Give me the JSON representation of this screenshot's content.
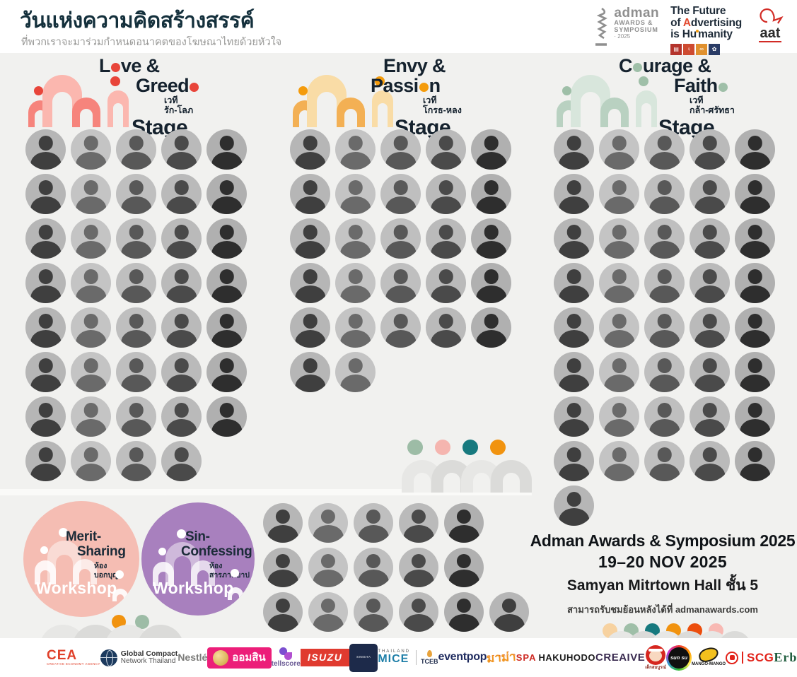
{
  "header": {
    "title": "วันแห่งความคิดสร้างสรรค์",
    "subtitle": "ที่พวกเราจะมาร่วมกำหนดอนาคตของโฆษณาไทยด้วยหัวใจ",
    "adman": {
      "name": "adman",
      "line2": "AWARDS &",
      "line3": "SYMPOSIUM",
      "year": "· 2025"
    },
    "tagline": {
      "l1": "The Future",
      "l2a": "of ",
      "l2b": "A",
      "l2c": "dvertising",
      "l3a": "is Hu",
      "l3b": "manity"
    },
    "sdg_tiles": [
      {
        "color": "#B4342C",
        "glyph": "▤"
      },
      {
        "color": "#CE4B31",
        "glyph": "♀"
      },
      {
        "color": "#E0912F",
        "glyph": "∞"
      },
      {
        "color": "#2A3C66",
        "glyph": "✿"
      }
    ],
    "aat": "aat"
  },
  "stages": [
    {
      "id": "love-greed",
      "line1": [
        {
          "t": "L"
        },
        {
          "d": true
        },
        {
          "t": "ve &"
        }
      ],
      "line2": [
        {
          "t": "Greed"
        },
        {
          "d": true
        }
      ],
      "thai1": "เวที",
      "thai2": "รัก-โลภ",
      "stage_label": "Stage",
      "accent": "#E8453A",
      "arch_dark": "#F6847C",
      "arch_light": "#FBB7AF",
      "rows": [
        5,
        5,
        5,
        5,
        5,
        5,
        5,
        4
      ]
    },
    {
      "id": "envy-passion",
      "line1": [
        {
          "t": "Envy &"
        }
      ],
      "line2": [
        {
          "t": "Passi"
        },
        {
          "d": true
        },
        {
          "t": "n"
        }
      ],
      "thai1": "เวที",
      "thai2": "โกรธ-หลง",
      "stage_label": "Stage",
      "accent": "#F49B0B",
      "arch_dark": "#F3B054",
      "arch_light": "#F9DCA6",
      "rows": [
        5,
        5,
        5,
        5,
        5,
        2
      ]
    },
    {
      "id": "courage-faith",
      "line1": [
        {
          "t": "C"
        },
        {
          "d": true
        },
        {
          "t": "urage &"
        }
      ],
      "line2": [
        {
          "t": "Faith"
        },
        {
          "d": true
        }
      ],
      "thai1": "เวที",
      "thai2": "กล้า-ศรัทธา",
      "stage_label": "Stage",
      "accent": "#9FBFA8",
      "arch_dark": "#B9D1C1",
      "arch_light": "#D8E6DC",
      "rows": [
        5,
        5,
        5,
        5,
        5,
        5,
        5,
        5,
        1
      ]
    }
  ],
  "mid_deco_dots": [
    "#9DBCA6",
    "#F5B5AF",
    "#17797E",
    "#F1930F"
  ],
  "workshops": {
    "items": [
      {
        "id": "merit",
        "bg": "#F5BDB3",
        "l1": "Merit-",
        "l2": "Sharing",
        "thai1": "ห้อง",
        "thai2": "บอกบุญ",
        "word": "Workshop"
      },
      {
        "id": "sin",
        "bg": "#A880BE",
        "l1": "Sin-",
        "l2": "Confessing",
        "thai1": "ห้อง",
        "thai2": "สารภาพบาป",
        "word": "Workshop"
      }
    ],
    "dots": [
      "#F1930F",
      "#9DBCA6"
    ],
    "speaker_rows": [
      5,
      5,
      6
    ]
  },
  "event_info": {
    "line1": "Adman Awards & Symposium 2025",
    "line2": "19–20 NOV 2025",
    "line3": "Samyan Mitrtown Hall",
    "line3_floor": "ชั้น 5",
    "line4": "สามารถรับชมย้อนหลังได้ที่ admanawards.com",
    "dots": [
      "#F7D2A0",
      "#9FBFA8",
      "#17797E",
      "#F1930F",
      "#EC4E0D",
      "#F8B9B3"
    ]
  },
  "sponsors": [
    {
      "id": "cea",
      "text": "CEA",
      "sub": "CREATIVE ECONOMY AGENCY"
    },
    {
      "id": "gcnt",
      "icon": "globe-icon",
      "text": "Global Compact",
      "sub": "Network Thailand"
    },
    {
      "id": "nestle",
      "text": "Nestlé"
    },
    {
      "id": "gsb",
      "icon": "gsb-emblem-icon",
      "text": "ออมสิน"
    },
    {
      "id": "tellscore",
      "icon": "tellscore-icon",
      "text": "tellscore"
    },
    {
      "id": "isuzu",
      "text": "ISUZU"
    },
    {
      "id": "singha",
      "icon": "lion-icon",
      "text": "SINGHA"
    },
    {
      "id": "mice",
      "sub_top": "THAILAND",
      "text": "MICE",
      "side": "TCEB"
    },
    {
      "id": "eventpop",
      "text": "eventpop"
    },
    {
      "id": "mama",
      "text": "มาม่า"
    },
    {
      "id": "spa",
      "text": "SPA",
      "side": "HAKUHODO"
    },
    {
      "id": "creaive",
      "text": "CREAIVE"
    },
    {
      "id": "dsb",
      "icon": "boy-mascot-icon",
      "text": "เด็กสมบูรณ์"
    },
    {
      "id": "sunsu",
      "icon": "sun-circle-icon",
      "text": "sun su"
    },
    {
      "id": "mango",
      "icon": "mango-icon",
      "text": "MANGO-MANGO"
    },
    {
      "id": "scg",
      "icon": "scg-emblem-icon",
      "text": "SCG"
    },
    {
      "id": "erb",
      "text": "Erb"
    }
  ]
}
